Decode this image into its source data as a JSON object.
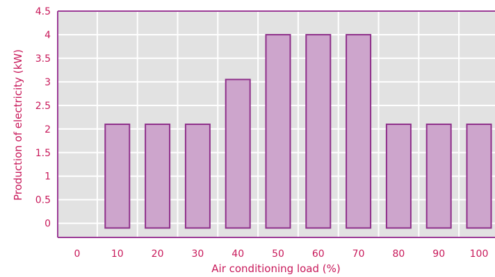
{
  "chart_data": {
    "type": "bar",
    "title": "",
    "xlabel": "Air conditioning load (%)",
    "ylabel": "Production of electricity (kW)",
    "categories": [
      "0",
      "10",
      "20",
      "30",
      "40",
      "50",
      "60",
      "70",
      "80",
      "90",
      "100"
    ],
    "values": [
      null,
      2.1,
      2.1,
      2.1,
      3.05,
      4.0,
      4.0,
      4.0,
      2.1,
      2.1,
      2.1
    ],
    "bar_baseline": -0.1,
    "ylim": [
      -0.3,
      4.5
    ],
    "yticks": [
      "0",
      "0.5",
      "1",
      "1.5",
      "2",
      "2.5",
      "3",
      "3.5",
      "4",
      "4.5"
    ],
    "grid": true,
    "colors": {
      "bar_fill": "#cda5cc",
      "bar_stroke": "#8e2f8a",
      "plot_background": "#e2e2e2",
      "grid": "#ffffff",
      "axis": "#9b3a96",
      "text": "#c8195a"
    }
  }
}
